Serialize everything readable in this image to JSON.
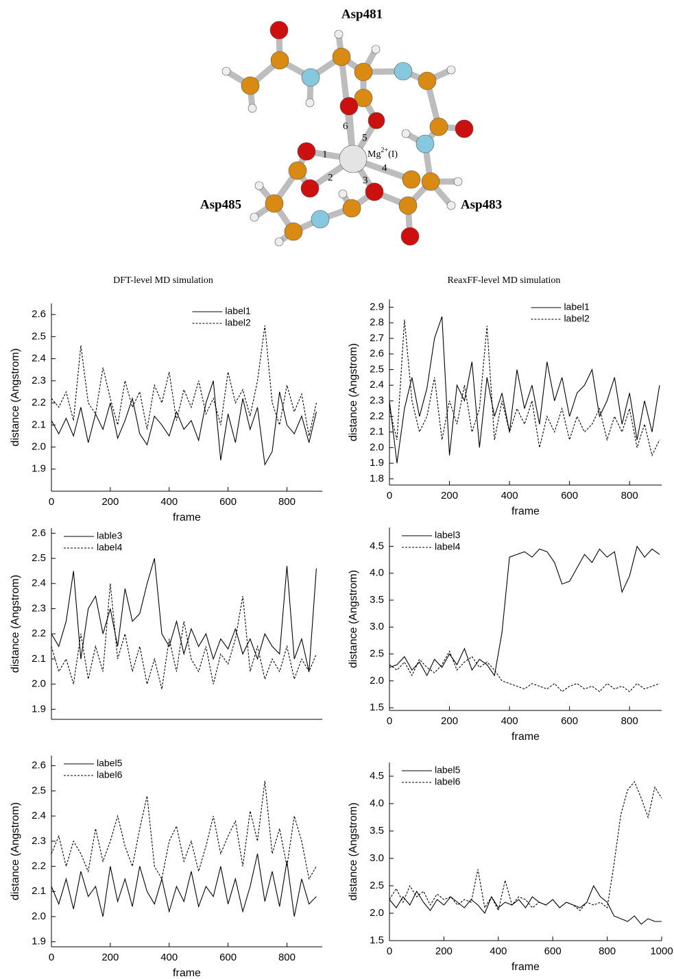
{
  "diagram": {
    "residues": [
      "Asp481",
      "Asp485",
      "Asp483"
    ],
    "ion": {
      "base": "Mg",
      "charge": "2+",
      "suffix": "(I)"
    },
    "bond_numbers": [
      "1",
      "2",
      "3",
      "4",
      "5",
      "6"
    ]
  },
  "column_titles": [
    "DFT-level MD simulation",
    "ReaxFF-level MD simulation"
  ],
  "chart_data": [
    {
      "type": "line",
      "xlabel": "frame",
      "ylabel": "distance (Angstrom)",
      "x": [
        0,
        25,
        50,
        75,
        100,
        125,
        150,
        175,
        200,
        225,
        250,
        275,
        300,
        325,
        350,
        375,
        400,
        425,
        450,
        475,
        500,
        525,
        550,
        575,
        600,
        625,
        650,
        675,
        700,
        725,
        750,
        775,
        800,
        825,
        850,
        875,
        900
      ],
      "xlim": [
        0,
        920
      ],
      "xticks": [
        0,
        200,
        400,
        600,
        800
      ],
      "ylim": [
        1.8,
        2.65
      ],
      "yticks": [
        1.9,
        {
          "value": 2,
          "label": "2.0"
        },
        2.1,
        2.2,
        2.3,
        2.4,
        2.5,
        2.6
      ],
      "legend": "top-center",
      "series": [
        {
          "name": "label1",
          "color": "#000000",
          "line_style": "solid",
          "values": [
            2.12,
            2.06,
            2.13,
            2.05,
            2.18,
            2.02,
            2.15,
            2.08,
            2.2,
            2.04,
            2.12,
            2.22,
            2.06,
            2.01,
            2.14,
            2.1,
            2.05,
            2.16,
            2.08,
            2.12,
            2.03,
            2.2,
            2.3,
            1.94,
            2.15,
            2.02,
            2.22,
            2.08,
            2.18,
            1.92,
            1.98,
            2.25,
            2.1,
            2.06,
            2.14,
            2.02,
            2.16
          ]
        },
        {
          "name": "label2",
          "color": "#000000",
          "line_style": "dashed",
          "values": [
            2.22,
            2.18,
            2.25,
            2.12,
            2.46,
            2.2,
            2.15,
            2.36,
            2.22,
            2.1,
            2.3,
            2.18,
            2.25,
            2.08,
            2.28,
            2.2,
            2.34,
            2.12,
            2.26,
            2.18,
            2.3,
            2.15,
            2.22,
            2.1,
            2.34,
            2.2,
            2.26,
            2.14,
            2.3,
            2.55,
            2.2,
            2.1,
            2.28,
            2.16,
            2.24,
            2.05,
            2.2
          ]
        }
      ]
    },
    {
      "type": "line",
      "xlabel": "frame",
      "ylabel": "distance (Angstrom)",
      "x": [
        0,
        25,
        50,
        75,
        100,
        125,
        150,
        175,
        200,
        225,
        250,
        275,
        300,
        325,
        350,
        375,
        400,
        425,
        450,
        475,
        500,
        525,
        550,
        575,
        600,
        625,
        650,
        675,
        700,
        725,
        750,
        775,
        800,
        825,
        850,
        875,
        900
      ],
      "xlim": [
        0,
        907
      ],
      "xticks": [
        0,
        200,
        400,
        600,
        800
      ],
      "ylim": [
        1.76,
        2.95
      ],
      "yticks": [
        1.8,
        1.9,
        {
          "value": 2,
          "label": "2.0"
        },
        2.1,
        2.2,
        2.3,
        2.4,
        2.5,
        2.6,
        2.7,
        2.8,
        2.9
      ],
      "legend": "top-center",
      "series": [
        {
          "name": "label1",
          "color": "#000000",
          "line_style": "solid",
          "values": [
            2.3,
            1.9,
            2.25,
            2.45,
            2.2,
            2.38,
            2.7,
            2.84,
            1.95,
            2.4,
            2.3,
            2.55,
            2.0,
            2.45,
            2.2,
            2.35,
            2.1,
            2.5,
            2.25,
            2.4,
            2.15,
            2.55,
            2.3,
            2.45,
            2.2,
            2.35,
            2.4,
            2.5,
            2.2,
            2.3,
            2.45,
            2.15,
            2.35,
            2.05,
            2.3,
            2.1,
            2.4
          ]
        },
        {
          "name": "label2",
          "color": "#000000",
          "line_style": "dashed",
          "values": [
            2.25,
            2.05,
            2.82,
            2.3,
            2.1,
            2.2,
            2.45,
            2.05,
            2.3,
            2.15,
            2.4,
            2.1,
            2.25,
            2.78,
            2.05,
            2.3,
            2.1,
            2.25,
            2.15,
            2.3,
            2.0,
            2.2,
            2.1,
            2.25,
            2.05,
            2.2,
            2.1,
            2.15,
            2.25,
            2.05,
            2.2,
            2.1,
            2.25,
            2.0,
            2.15,
            1.95,
            2.05
          ]
        }
      ]
    },
    {
      "type": "line",
      "ylabel": "distance (Angstrom)",
      "x": [
        0,
        25,
        50,
        75,
        100,
        125,
        150,
        175,
        200,
        225,
        250,
        275,
        300,
        325,
        350,
        375,
        400,
        425,
        450,
        475,
        500,
        525,
        550,
        575,
        600,
        625,
        650,
        675,
        700,
        725,
        750,
        775,
        800,
        825,
        850,
        875,
        900
      ],
      "xlim": [
        0,
        920
      ],
      "ylim": [
        1.86,
        2.62
      ],
      "yticks": [
        1.9,
        {
          "value": 2,
          "label": "2.0"
        },
        2.1,
        2.2,
        2.3,
        2.4,
        2.5,
        2.6
      ],
      "legend": "top-left",
      "series": [
        {
          "name": "lable3",
          "color": "#000000",
          "line_style": "solid",
          "values": [
            2.2,
            2.15,
            2.25,
            2.45,
            2.1,
            2.3,
            2.35,
            2.2,
            2.3,
            2.15,
            2.38,
            2.25,
            2.28,
            2.4,
            2.5,
            2.2,
            2.15,
            2.25,
            2.12,
            2.22,
            2.15,
            2.2,
            2.1,
            2.18,
            2.14,
            2.22,
            2.12,
            2.18,
            2.1,
            2.2,
            2.15,
            2.12,
            2.47,
            2.1,
            2.18,
            2.05,
            2.46
          ]
        },
        {
          "name": "label4",
          "color": "#000000",
          "line_style": "dashed",
          "values": [
            2.15,
            2.05,
            2.1,
            2.0,
            2.2,
            2.02,
            2.15,
            2.05,
            2.4,
            2.1,
            2.2,
            2.05,
            2.15,
            2.0,
            2.1,
            1.98,
            2.18,
            2.05,
            2.25,
            2.1,
            2.05,
            2.15,
            2.0,
            2.12,
            2.08,
            2.18,
            2.35,
            2.05,
            2.15,
            2.02,
            2.1,
            2.05,
            2.15,
            2.02,
            2.1,
            2.05,
            2.12
          ]
        }
      ]
    },
    {
      "type": "line",
      "xlabel": "frame",
      "ylabel": "distance (Angstrom)",
      "x": [
        0,
        25,
        50,
        75,
        100,
        125,
        150,
        175,
        200,
        225,
        250,
        275,
        300,
        325,
        350,
        375,
        400,
        425,
        450,
        475,
        500,
        525,
        550,
        575,
        600,
        625,
        650,
        675,
        700,
        725,
        750,
        775,
        800,
        825,
        850,
        875,
        900
      ],
      "xlim": [
        0,
        907
      ],
      "xticks": [
        0,
        200,
        400,
        600,
        800
      ],
      "ylim": [
        1.45,
        4.85
      ],
      "yticks": [
        1.5,
        {
          "value": 2,
          "label": "2.0"
        },
        2.5,
        {
          "value": 3,
          "label": "3.0"
        },
        3.5,
        {
          "value": 4,
          "label": "4.0"
        },
        4.5
      ],
      "legend": "top-left",
      "series": [
        {
          "name": "label3",
          "color": "#000000",
          "line_style": "solid",
          "values": [
            2.25,
            2.3,
            2.45,
            2.2,
            2.35,
            2.1,
            2.4,
            2.25,
            2.5,
            2.3,
            2.6,
            2.2,
            2.4,
            2.3,
            2.1,
            2.9,
            4.3,
            4.35,
            4.4,
            4.3,
            4.45,
            4.4,
            4.2,
            3.8,
            3.85,
            4.1,
            4.35,
            4.2,
            4.45,
            4.3,
            4.4,
            3.65,
            3.95,
            4.5,
            4.3,
            4.45,
            4.35
          ]
        },
        {
          "name": "label4",
          "color": "#000000",
          "line_style": "dashed",
          "values": [
            2.3,
            2.2,
            2.35,
            2.1,
            2.4,
            2.25,
            2.15,
            2.3,
            2.55,
            2.2,
            2.35,
            2.45,
            2.25,
            2.35,
            2.2,
            2.0,
            1.95,
            1.9,
            1.85,
            1.95,
            1.9,
            1.85,
            1.95,
            1.8,
            1.9,
            1.95,
            1.85,
            1.9,
            1.8,
            1.95,
            1.85,
            1.9,
            1.8,
            1.95,
            1.85,
            1.9,
            1.95
          ]
        }
      ]
    },
    {
      "type": "line",
      "xlabel": "frame",
      "ylabel": "distance (Angstrom)",
      "x": [
        0,
        25,
        50,
        75,
        100,
        125,
        150,
        175,
        200,
        225,
        250,
        275,
        300,
        325,
        350,
        375,
        400,
        425,
        450,
        475,
        500,
        525,
        550,
        575,
        600,
        625,
        650,
        675,
        700,
        725,
        750,
        775,
        800,
        825,
        850,
        875,
        900
      ],
      "xlim": [
        0,
        920
      ],
      "xticks": [
        0,
        200,
        400,
        600,
        800
      ],
      "ylim": [
        1.88,
        2.64
      ],
      "yticks": [
        1.9,
        {
          "value": 2,
          "label": "2.0"
        },
        2.1,
        2.2,
        2.3,
        2.4,
        2.5,
        2.6
      ],
      "legend": "top-left",
      "series": [
        {
          "name": "label5",
          "color": "#000000",
          "line_style": "solid",
          "values": [
            2.12,
            2.05,
            2.15,
            2.03,
            2.18,
            2.08,
            2.12,
            2.0,
            2.2,
            2.06,
            2.15,
            2.04,
            2.2,
            2.1,
            2.05,
            2.15,
            2.02,
            2.12,
            2.06,
            2.18,
            2.04,
            2.12,
            2.08,
            2.2,
            2.05,
            2.15,
            2.02,
            2.12,
            2.25,
            2.06,
            2.18,
            2.04,
            2.22,
            2.0,
            2.15,
            2.05,
            2.08
          ]
        },
        {
          "name": "label6",
          "color": "#000000",
          "line_style": "dashed",
          "values": [
            2.25,
            2.32,
            2.2,
            2.3,
            2.25,
            2.18,
            2.35,
            2.22,
            2.3,
            2.4,
            2.28,
            2.2,
            2.35,
            2.48,
            2.2,
            2.15,
            2.3,
            2.36,
            2.22,
            2.3,
            2.18,
            2.28,
            2.4,
            2.25,
            2.32,
            2.38,
            2.2,
            2.42,
            2.3,
            2.54,
            2.25,
            2.35,
            2.2,
            2.4,
            2.3,
            2.15,
            2.2
          ]
        }
      ]
    },
    {
      "type": "line",
      "xlabel": "frame",
      "ylabel": "distance (Angstrom)",
      "x": [
        0,
        25,
        50,
        75,
        100,
        125,
        150,
        175,
        200,
        225,
        250,
        275,
        300,
        325,
        350,
        375,
        400,
        425,
        450,
        475,
        500,
        525,
        550,
        575,
        600,
        625,
        650,
        675,
        700,
        725,
        750,
        775,
        800,
        825,
        850,
        875,
        900,
        925,
        950,
        975,
        1000
      ],
      "xlim": [
        0,
        1000
      ],
      "xticks": [
        0,
        200,
        400,
        600,
        800,
        1000
      ],
      "ylim": [
        1.5,
        4.75
      ],
      "yticks": [
        1.5,
        {
          "value": 2,
          "label": "2.0"
        },
        2.5,
        {
          "value": 3,
          "label": "3.0"
        },
        3.5,
        {
          "value": 4,
          "label": "4.0"
        },
        4.5
      ],
      "legend": "top-left",
      "series": [
        {
          "name": "label5",
          "color": "#000000",
          "line_style": "solid",
          "values": [
            2.25,
            2.1,
            2.3,
            2.15,
            2.4,
            2.2,
            2.05,
            2.25,
            2.15,
            2.3,
            2.2,
            2.1,
            2.25,
            2.15,
            2.0,
            2.3,
            2.1,
            2.2,
            2.15,
            2.25,
            2.1,
            2.3,
            2.2,
            2.15,
            2.25,
            2.1,
            2.2,
            2.15,
            2.1,
            2.2,
            2.5,
            2.3,
            2.2,
            1.95,
            1.9,
            1.85,
            1.95,
            1.8,
            1.9,
            1.85,
            1.85
          ]
        },
        {
          "name": "label6",
          "color": "#000000",
          "line_style": "dashed",
          "values": [
            2.25,
            2.45,
            2.2,
            2.5,
            2.3,
            2.4,
            2.15,
            2.35,
            2.25,
            2.3,
            2.15,
            2.25,
            2.2,
            2.8,
            2.1,
            2.3,
            2.05,
            2.6,
            2.15,
            2.3,
            2.25,
            2.1,
            2.2,
            2.15,
            2.25,
            2.1,
            2.2,
            2.15,
            2.05,
            2.2,
            2.15,
            2.2,
            2.1,
            2.9,
            3.8,
            4.25,
            4.4,
            4.1,
            3.75,
            4.3,
            4.1
          ]
        }
      ]
    }
  ]
}
